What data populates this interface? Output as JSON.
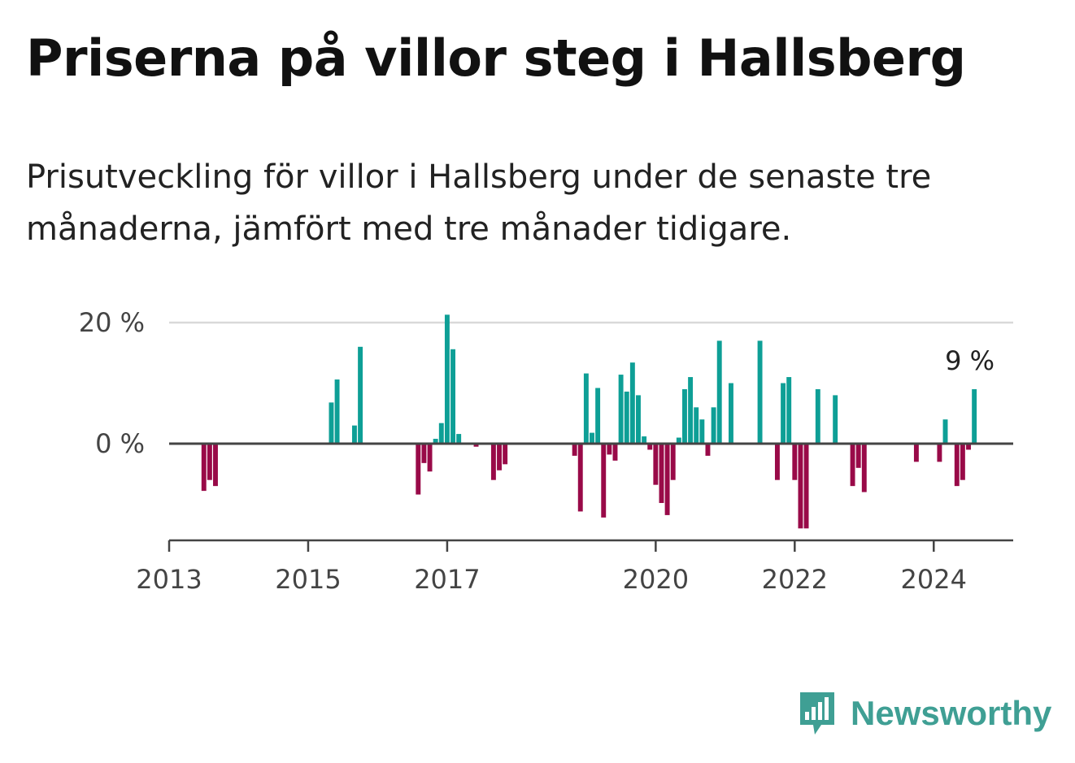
{
  "title": "Priserna på villor steg i Hallsberg",
  "subtitle": "Prisutveckling för villor i Hallsberg under de senaste tre månaderna, jämfört med tre månader tidigare.",
  "brand": {
    "name": "Newsworthy",
    "color": "#3f9f94"
  },
  "colors": {
    "positive": "#0e9f96",
    "negative": "#990a48",
    "axis": "#444444",
    "grid": "#d9d9d9"
  },
  "chart_data": {
    "type": "bar",
    "title": "Priserna på villor steg i Hallsberg",
    "xlabel": "",
    "ylabel": "",
    "ylim": [
      -16,
      20
    ],
    "xlim": [
      "2013-01",
      "2025-03"
    ],
    "grid": true,
    "y_ticks": [
      0,
      20
    ],
    "y_tick_labels": [
      "0 %",
      "20 %"
    ],
    "x_ticks": [
      "2013",
      "2015",
      "2017",
      "2020",
      "2022",
      "2024"
    ],
    "annotation": {
      "text": "9 %",
      "x": "2024-07"
    },
    "series": [
      {
        "values": [
          {
            "x": "2013-07",
            "y": -7.8
          },
          {
            "x": "2013-08",
            "y": -6
          },
          {
            "x": "2013-09",
            "y": -7
          },
          {
            "x": "2015-05",
            "y": 6.8
          },
          {
            "x": "2015-06",
            "y": 10.6
          },
          {
            "x": "2015-09",
            "y": 3
          },
          {
            "x": "2015-10",
            "y": 16
          },
          {
            "x": "2016-08",
            "y": -8.4
          },
          {
            "x": "2016-09",
            "y": -3.2
          },
          {
            "x": "2016-10",
            "y": -4.6
          },
          {
            "x": "2016-11",
            "y": 0.8
          },
          {
            "x": "2016-12",
            "y": 3.4
          },
          {
            "x": "2017-01",
            "y": 21.3
          },
          {
            "x": "2017-02",
            "y": 15.6
          },
          {
            "x": "2017-03",
            "y": 1.6
          },
          {
            "x": "2017-06",
            "y": -0.5
          },
          {
            "x": "2017-09",
            "y": -6
          },
          {
            "x": "2017-10",
            "y": -4.4
          },
          {
            "x": "2017-11",
            "y": -3.4
          },
          {
            "x": "2018-11",
            "y": -2
          },
          {
            "x": "2018-12",
            "y": -11.2
          },
          {
            "x": "2019-01",
            "y": 11.6
          },
          {
            "x": "2019-02",
            "y": 1.8
          },
          {
            "x": "2019-03",
            "y": 9.2
          },
          {
            "x": "2019-04",
            "y": -12.2
          },
          {
            "x": "2019-05",
            "y": -1.8
          },
          {
            "x": "2019-06",
            "y": -2.8
          },
          {
            "x": "2019-07",
            "y": 11.4
          },
          {
            "x": "2019-08",
            "y": 8.6
          },
          {
            "x": "2019-09",
            "y": 13.4
          },
          {
            "x": "2019-10",
            "y": 8
          },
          {
            "x": "2019-11",
            "y": 1.2
          },
          {
            "x": "2019-12",
            "y": -1
          },
          {
            "x": "2020-01",
            "y": -6.8
          },
          {
            "x": "2020-02",
            "y": -9.8
          },
          {
            "x": "2020-03",
            "y": -11.8
          },
          {
            "x": "2020-04",
            "y": -6
          },
          {
            "x": "2020-05",
            "y": 1
          },
          {
            "x": "2020-06",
            "y": 9
          },
          {
            "x": "2020-07",
            "y": 11
          },
          {
            "x": "2020-08",
            "y": 6
          },
          {
            "x": "2020-09",
            "y": 4
          },
          {
            "x": "2020-10",
            "y": -2
          },
          {
            "x": "2020-11",
            "y": 6
          },
          {
            "x": "2020-12",
            "y": 17
          },
          {
            "x": "2021-02",
            "y": 10
          },
          {
            "x": "2021-07",
            "y": 17
          },
          {
            "x": "2021-10",
            "y": -6
          },
          {
            "x": "2021-11",
            "y": 10
          },
          {
            "x": "2021-12",
            "y": 11
          },
          {
            "x": "2022-01",
            "y": -6
          },
          {
            "x": "2022-02",
            "y": -14
          },
          {
            "x": "2022-03",
            "y": -14
          },
          {
            "x": "2022-05",
            "y": 9
          },
          {
            "x": "2022-08",
            "y": 8
          },
          {
            "x": "2022-11",
            "y": -7
          },
          {
            "x": "2022-12",
            "y": -4
          },
          {
            "x": "2023-01",
            "y": -8
          },
          {
            "x": "2023-10",
            "y": -3
          },
          {
            "x": "2024-02",
            "y": -3
          },
          {
            "x": "2024-03",
            "y": 4
          },
          {
            "x": "2024-05",
            "y": -7
          },
          {
            "x": "2024-06",
            "y": -6
          },
          {
            "x": "2024-07",
            "y": -1
          },
          {
            "x": "2024-08",
            "y": 9
          }
        ]
      }
    ]
  }
}
